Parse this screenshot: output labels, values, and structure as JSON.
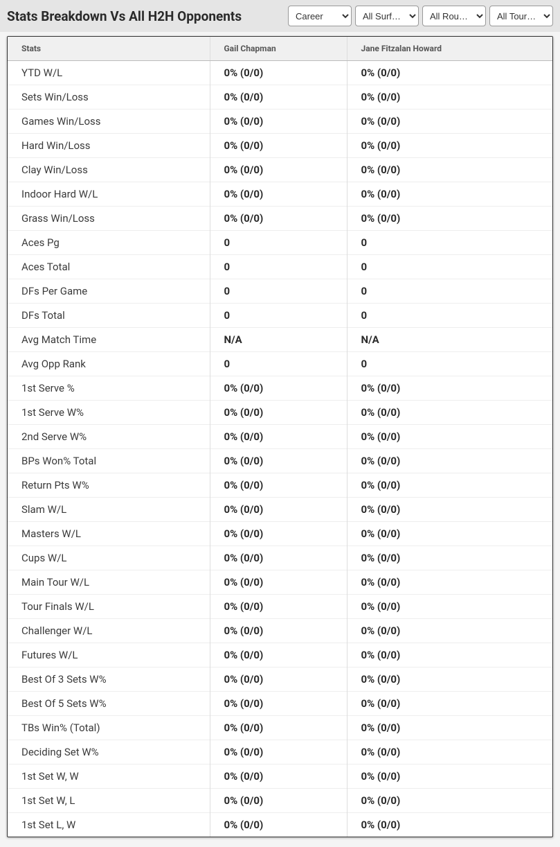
{
  "header": {
    "title": "Stats Breakdown Vs All H2H Opponents",
    "filters": {
      "career": {
        "value": "Career",
        "options": [
          "Career"
        ]
      },
      "surface": {
        "value": "All Surf…",
        "options": [
          "All Surf…"
        ]
      },
      "round": {
        "value": "All Rou…",
        "options": [
          "All Rou…"
        ]
      },
      "tour": {
        "value": "All Tour…",
        "options": [
          "All Tour…"
        ]
      }
    }
  },
  "table": {
    "columns": [
      "Stats",
      "Gail Chapman",
      "Jane Fitzalan Howard"
    ],
    "rows": [
      [
        "YTD W/L",
        "0% (0/0)",
        "0% (0/0)"
      ],
      [
        "Sets Win/Loss",
        "0% (0/0)",
        "0% (0/0)"
      ],
      [
        "Games Win/Loss",
        "0% (0/0)",
        "0% (0/0)"
      ],
      [
        "Hard Win/Loss",
        "0% (0/0)",
        "0% (0/0)"
      ],
      [
        "Clay Win/Loss",
        "0% (0/0)",
        "0% (0/0)"
      ],
      [
        "Indoor Hard W/L",
        "0% (0/0)",
        "0% (0/0)"
      ],
      [
        "Grass Win/Loss",
        "0% (0/0)",
        "0% (0/0)"
      ],
      [
        "Aces Pg",
        "0",
        "0"
      ],
      [
        "Aces Total",
        "0",
        "0"
      ],
      [
        "DFs Per Game",
        "0",
        "0"
      ],
      [
        "DFs Total",
        "0",
        "0"
      ],
      [
        "Avg Match Time",
        "N/A",
        "N/A"
      ],
      [
        "Avg Opp Rank",
        "0",
        "0"
      ],
      [
        "1st Serve %",
        "0% (0/0)",
        "0% (0/0)"
      ],
      [
        "1st Serve W%",
        "0% (0/0)",
        "0% (0/0)"
      ],
      [
        "2nd Serve W%",
        "0% (0/0)",
        "0% (0/0)"
      ],
      [
        "BPs Won% Total",
        "0% (0/0)",
        "0% (0/0)"
      ],
      [
        "Return Pts W%",
        "0% (0/0)",
        "0% (0/0)"
      ],
      [
        "Slam W/L",
        "0% (0/0)",
        "0% (0/0)"
      ],
      [
        "Masters W/L",
        "0% (0/0)",
        "0% (0/0)"
      ],
      [
        "Cups W/L",
        "0% (0/0)",
        "0% (0/0)"
      ],
      [
        "Main Tour W/L",
        "0% (0/0)",
        "0% (0/0)"
      ],
      [
        "Tour Finals W/L",
        "0% (0/0)",
        "0% (0/0)"
      ],
      [
        "Challenger W/L",
        "0% (0/0)",
        "0% (0/0)"
      ],
      [
        "Futures W/L",
        "0% (0/0)",
        "0% (0/0)"
      ],
      [
        "Best Of 3 Sets W%",
        "0% (0/0)",
        "0% (0/0)"
      ],
      [
        "Best Of 5 Sets W%",
        "0% (0/0)",
        "0% (0/0)"
      ],
      [
        "TBs Win% (Total)",
        "0% (0/0)",
        "0% (0/0)"
      ],
      [
        "Deciding Set W%",
        "0% (0/0)",
        "0% (0/0)"
      ],
      [
        "1st Set W, W",
        "0% (0/0)",
        "0% (0/0)"
      ],
      [
        "1st Set W, L",
        "0% (0/0)",
        "0% (0/0)"
      ],
      [
        "1st Set L, W",
        "0% (0/0)",
        "0% (0/0)"
      ]
    ]
  },
  "colors": {
    "header_bg": "#e5e5e5",
    "page_bg": "#f4f4f4",
    "table_header_bg": "#f0f0f0",
    "border": "#333333",
    "text": "#2a2a2a"
  }
}
